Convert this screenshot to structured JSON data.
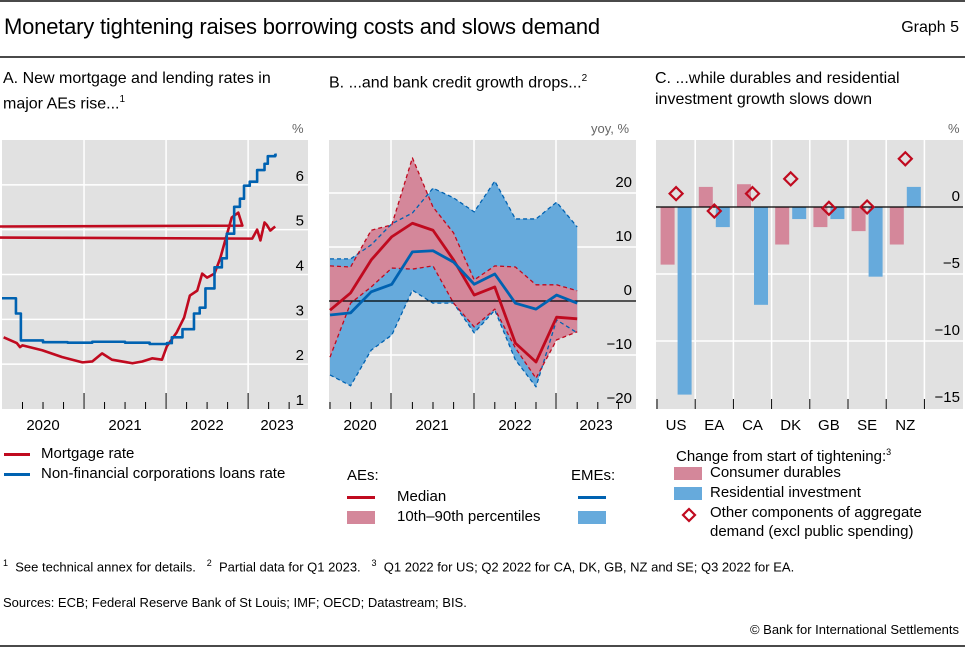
{
  "header": {
    "title": "Monetary tightening raises borrowing costs and slows demand",
    "graph_number": "Graph 5"
  },
  "colors": {
    "red": "#c00a1f",
    "blue": "#0062b1",
    "pink_fill": "#d4879a",
    "lightblue_fill": "#66aadc",
    "plot_bg": "#e1e1e1",
    "grid": "#ffffff",
    "diamond": "#c00a1f"
  },
  "panels": {
    "a": {
      "title": "A. New mortgage and lending rates in major AEs rise...",
      "sup": "1",
      "unit": "%",
      "legend": [
        "Mortgage rate",
        "Non-financial corporations loans rate"
      ]
    },
    "b": {
      "title": "B. ...and bank credit growth drops...",
      "sup": "2",
      "unit": "yoy, %",
      "legend": {
        "aes": "AEs:",
        "emes": "EMEs:",
        "median": "Median",
        "pct": "10th–90th percentiles"
      }
    },
    "c": {
      "title": "C. ...while durables and residential investment growth slows down",
      "unit": "%",
      "legend": {
        "heading": "Change from start of tightening:",
        "sup": "3",
        "durables": "Consumer durables",
        "residential": "Residential investment",
        "other": "Other components of aggregate demand (excl public spending)"
      }
    }
  },
  "footnotes": {
    "n1": "See technical annex for details.",
    "n2": "Partial data for Q1 2023.",
    "n3": "Q1 2022 for US; Q2 2022 for CA, DK, GB, NZ and SE; Q3 2022 for EA."
  },
  "sources": "Sources: ECB; Federal Reserve Bank of St Louis; IMF; OECD; Datastream; BIS.",
  "copyright": "© Bank for International Settlements",
  "chart_data": [
    {
      "type": "line",
      "panel": "A",
      "title": "New mortgage and lending rates in major AEs rise",
      "ylabel": "%",
      "ylim": [
        1,
        7
      ],
      "yticks": [
        1,
        2,
        3,
        4,
        5,
        6
      ],
      "xlim": [
        2020.0,
        2023.73
      ],
      "xticks_labels": [
        "2020",
        "2021",
        "2022",
        "2023"
      ],
      "grid": true,
      "legend_position": "bottom",
      "series": [
        {
          "name": "Mortgage rate",
          "color": "red",
          "x": [
            2020.02,
            2020.18,
            2020.22,
            2020.25,
            2020.49,
            2020.73,
            2020.98,
            2021.1,
            2021.22,
            2021.34,
            2021.59,
            2021.71,
            2021.83,
            2021.95,
            2022.01,
            2022.13,
            2022.22,
            2022.29,
            2022.38,
            2022.44,
            2022.5,
            2022.59,
            2022.66,
            2022.73,
            2022.8,
            2022.88,
            2022.93,
            2003.0,
            2023.05,
            2023.11,
            2023.15,
            2023.2,
            2023.23,
            2023.27,
            2023.33
          ],
          "y": [
            2.6,
            2.47,
            2.38,
            2.42,
            2.31,
            2.16,
            2.04,
            2.06,
            2.24,
            2.1,
            2.02,
            2.06,
            2.13,
            2.1,
            2.4,
            2.71,
            3.04,
            3.53,
            3.64,
            4.02,
            3.93,
            4.02,
            4.36,
            4.82,
            5.27,
            5.38,
            5.09,
            4.96,
            4.8,
            5.0,
            4.76,
            5.16,
            5.1,
            4.98,
            5.07
          ]
        },
        {
          "name": "Non-financial corporations loans rate",
          "color": "blue",
          "x": [
            2020.0,
            2020.17,
            2020.23,
            2020.5,
            2020.8,
            2021.1,
            2021.5,
            2021.8,
            2022.01,
            2022.07,
            2022.2,
            2022.34,
            2022.41,
            2022.48,
            2022.59,
            2022.68,
            2022.74,
            2022.83,
            2022.9,
            2022.95,
            2023.02,
            2023.11,
            2023.2,
            2023.24,
            2023.33,
            2023.35
          ],
          "y": [
            3.47,
            3.13,
            2.53,
            2.49,
            2.48,
            2.5,
            2.48,
            2.45,
            2.47,
            2.6,
            2.78,
            3.13,
            3.26,
            3.69,
            4.16,
            4.36,
            4.91,
            5.51,
            5.69,
            5.98,
            6.07,
            6.33,
            6.47,
            6.64,
            6.67,
            6.67
          ]
        }
      ]
    },
    {
      "type": "area",
      "panel": "B",
      "title": "...and bank credit growth drops",
      "ylabel": "yoy, %",
      "ylim": [
        -20,
        27
      ],
      "yticks": [
        -20,
        -10,
        0,
        10,
        20
      ],
      "xlim": [
        2020.25,
        2023.81
      ],
      "xticks_labels": [
        "2020",
        "2021",
        "2022",
        "2023"
      ],
      "x": [
        "2020-Q1",
        "2020-Q2",
        "2020-Q3",
        "2020-Q4",
        "2021-Q1",
        "2021-Q2",
        "2021-Q3",
        "2021-Q4",
        "2022-Q1",
        "2022-Q2",
        "2022-Q3",
        "2022-Q4",
        "2023-Q1"
      ],
      "grid": true,
      "legend_position": "bottom",
      "series": [
        {
          "name": "AEs median",
          "color": "red",
          "values": [
            -1.7,
            1.5,
            7.6,
            11.9,
            14.4,
            13.1,
            7.6,
            1.1,
            2.6,
            -7.8,
            -11.3,
            -3.0,
            -3.3
          ]
        },
        {
          "name": "AEs 10th percentile",
          "color": "red",
          "values": [
            -10.4,
            -0.4,
            2.6,
            6.1,
            5.9,
            6.5,
            -0.4,
            -4.8,
            -1.5,
            -8.7,
            -14.3,
            -7.2,
            -5.7
          ]
        },
        {
          "name": "AEs 90th percentile",
          "color": "red",
          "values": [
            6.5,
            6.3,
            13.1,
            14.1,
            26.5,
            17.4,
            12.6,
            3.9,
            6.5,
            6.3,
            3.0,
            3.0,
            1.9
          ]
        },
        {
          "name": "EMEs median",
          "color": "blue",
          "values": [
            -2.6,
            -2.2,
            1.7,
            3.1,
            9.1,
            9.3,
            7.2,
            3.1,
            5.0,
            -0.4,
            -1.5,
            1.1,
            -0.4
          ]
        },
        {
          "name": "EMEs 10th percentile",
          "color": "blue",
          "values": [
            -13.7,
            -15.7,
            -9.1,
            -6.3,
            2.0,
            -0.4,
            -0.4,
            -5.9,
            -1.7,
            -10.9,
            -15.9,
            -3.5,
            -5.9
          ]
        },
        {
          "name": "EMEs 90th percentile",
          "color": "blue",
          "values": [
            7.8,
            7.8,
            10.4,
            14.3,
            16.3,
            20.9,
            19.1,
            16.5,
            22.2,
            15.2,
            15.2,
            18.3,
            13.7
          ]
        }
      ]
    },
    {
      "type": "bar",
      "panel": "C",
      "title": "...while durables and residential investment growth slows down",
      "ylabel": "%",
      "ylim": [
        -15,
        5
      ],
      "yticks": [
        -15,
        -10,
        -5,
        0
      ],
      "categories": [
        "US",
        "EA",
        "CA",
        "DK",
        "GB",
        "SE",
        "NZ"
      ],
      "grid": true,
      "legend_position": "bottom",
      "series": [
        {
          "name": "Consumer durables",
          "kind": "bar",
          "color": "pink_fill",
          "values": [
            -4.3,
            1.5,
            1.7,
            -2.8,
            -1.5,
            -1.8,
            -2.8
          ]
        },
        {
          "name": "Residential investment",
          "kind": "bar",
          "color": "lightblue_fill",
          "values": [
            -14.0,
            -1.5,
            -7.3,
            -0.9,
            -0.9,
            -5.2,
            1.5
          ]
        },
        {
          "name": "Other components of aggregate demand (excl public spending)",
          "kind": "marker",
          "color": "diamond",
          "values": [
            1.0,
            -0.3,
            1.0,
            2.1,
            -0.1,
            0.0,
            3.6
          ]
        }
      ]
    }
  ]
}
